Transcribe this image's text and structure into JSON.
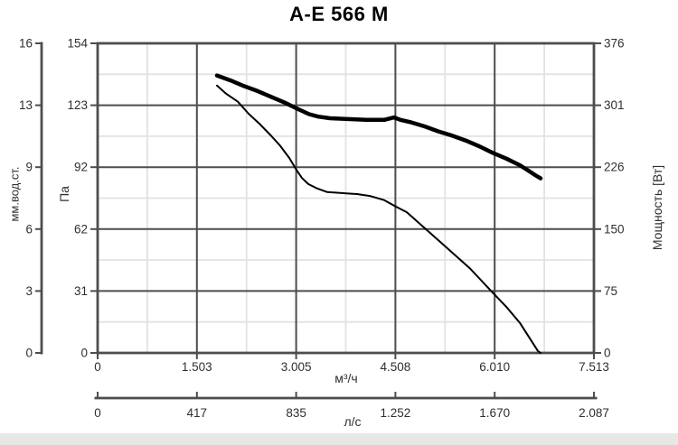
{
  "chart_data": {
    "type": "line",
    "title": "A-E 566 M",
    "grid": "major-dark-minor-light, 5 major divisions per axis",
    "legend": "none",
    "colors": {
      "curve": "#000000",
      "axis": "#4d4d4d",
      "minor_grid": "#e2e2e2",
      "text": "#2f2f2f"
    },
    "x_axis_primary": {
      "unit": "м³/ч",
      "tick_labels": [
        "0",
        "1.503",
        "3.005",
        "4.508",
        "6.010",
        "7.513"
      ],
      "range_m3h": [
        0,
        7513
      ]
    },
    "x_axis_secondary": {
      "unit": "л/с",
      "tick_labels": [
        "0",
        "417",
        "835",
        "1.252",
        "1.670",
        "2.087"
      ],
      "range_ls": [
        0,
        2087
      ]
    },
    "y_axis_pressure_pa": {
      "unit": "Па",
      "tick_labels": [
        "0",
        "31",
        "62",
        "92",
        "123",
        "154"
      ],
      "range_pa": [
        0,
        154
      ]
    },
    "y_axis_pressure_mm": {
      "unit": "мм.вод.ст.",
      "tick_labels": [
        "0",
        "3",
        "6",
        "9",
        "13",
        "16"
      ],
      "range_mm": [
        0,
        16
      ]
    },
    "y_axis_power": {
      "unit": "Мощность [Вт]",
      "tick_labels": [
        "0",
        "75",
        "150",
        "226",
        "301",
        "376"
      ],
      "range_w": [
        0,
        376
      ]
    },
    "series": [
      {
        "name": "pressure-curve",
        "y_axis": "pa",
        "style": "thin",
        "points": [
          [
            1806,
            133
          ],
          [
            1943,
            129
          ],
          [
            2121,
            125
          ],
          [
            2285,
            119
          ],
          [
            2449,
            114
          ],
          [
            2627,
            108
          ],
          [
            2764,
            103
          ],
          [
            2901,
            97
          ],
          [
            3011,
            91
          ],
          [
            3093,
            87
          ],
          [
            3189,
            84
          ],
          [
            3312,
            82
          ],
          [
            3476,
            80
          ],
          [
            3695,
            79.5
          ],
          [
            3928,
            79
          ],
          [
            4133,
            78
          ],
          [
            4338,
            76
          ],
          [
            4502,
            73
          ],
          [
            4680,
            70
          ],
          [
            4817,
            66
          ],
          [
            5159,
            56
          ],
          [
            5365,
            50
          ],
          [
            5638,
            42
          ],
          [
            5980,
            30
          ],
          [
            6186,
            23
          ],
          [
            6391,
            15
          ],
          [
            6528,
            8
          ],
          [
            6665,
            1
          ],
          [
            6706,
            0
          ]
        ]
      },
      {
        "name": "power-curve",
        "y_axis": "w",
        "style": "thick",
        "points": [
          [
            1806,
            337
          ],
          [
            2012,
            331
          ],
          [
            2217,
            324
          ],
          [
            2422,
            318
          ],
          [
            2627,
            311
          ],
          [
            2833,
            304
          ],
          [
            3038,
            296
          ],
          [
            3202,
            290
          ],
          [
            3339,
            287
          ],
          [
            3517,
            285
          ],
          [
            3791,
            284
          ],
          [
            4065,
            283
          ],
          [
            4338,
            283
          ],
          [
            4489,
            286
          ],
          [
            4584,
            283
          ],
          [
            4749,
            280
          ],
          [
            4954,
            275
          ],
          [
            5159,
            269
          ],
          [
            5365,
            264
          ],
          [
            5570,
            258
          ],
          [
            5775,
            251
          ],
          [
            5980,
            243
          ],
          [
            6186,
            236
          ],
          [
            6391,
            228
          ],
          [
            6528,
            221
          ],
          [
            6624,
            216
          ],
          [
            6706,
            212
          ]
        ]
      }
    ]
  }
}
